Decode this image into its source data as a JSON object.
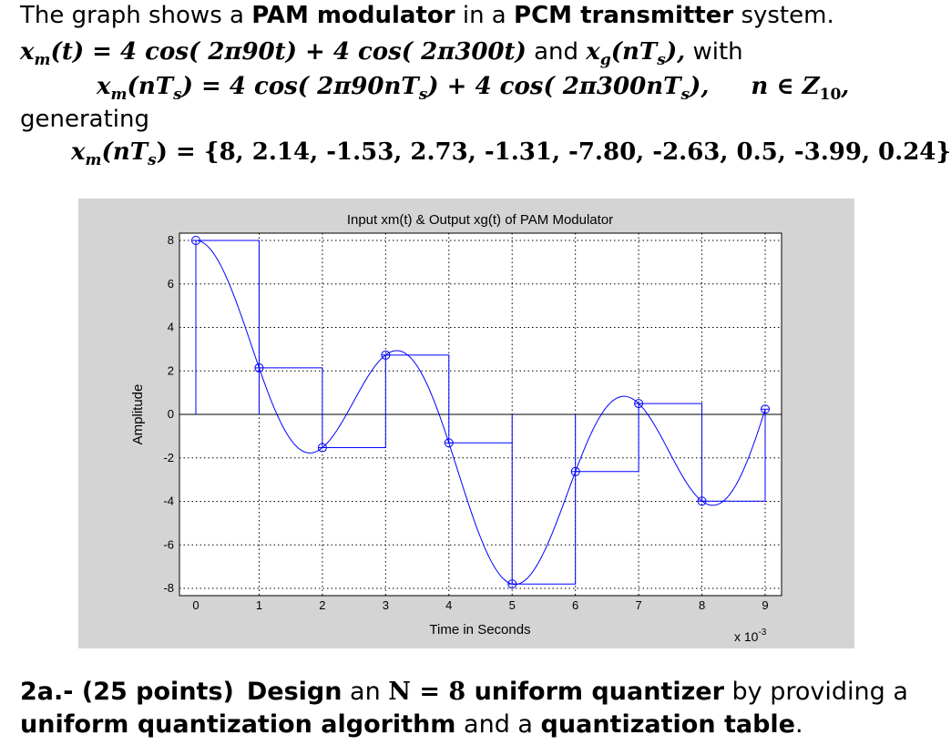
{
  "header": {
    "line1": {
      "pre": "The graph shows a ",
      "b1": "PAM modulator",
      "mid": " in a ",
      "b2": "PCM transmitter",
      "post": " system."
    },
    "line2": {
      "lhs": "x",
      "lhs_sub": "m",
      "lhs_arg": "(t) = 4 cos( 2π90t) + 4 cos( 2π300t)",
      "and": " and ",
      "xg": "x",
      "xg_sub": "g",
      "xg_arg": "(nT",
      "xg_sub2": "s",
      "xg_end": "),",
      "with": " with"
    },
    "line3": {
      "lhs": "x",
      "lhs_sub": "m",
      "lhs_arg1": "(nT",
      "lhs_sub2": "s",
      "lhs_arg2": ") = 4 cos( 2π90nT",
      "s1": "s",
      "mid": ") + 4 cos( 2π300nT",
      "s2": "s",
      "end": "),",
      "domain": "n ∈ Z",
      "domain_sub": "10",
      "comma": ","
    },
    "line4": "generating",
    "line5": {
      "lhs": "x",
      "lhs_sub": "m",
      "lhs_arg1": "(nT",
      "lhs_sub2": "s",
      "lhs_arg2": ") = {8, 2.14, -1.53, 2.73, -1.31, -7.80, -2.63, 0.5, -3.99, 0.24}"
    }
  },
  "question": {
    "label": "2a.- (25 points)",
    "design": "Design",
    "an": " an ",
    "n_eq": "N = 8",
    "uq": " uniform quantizer",
    "by": " by providing a",
    "uqa": "uniform quantization algorithm",
    "and": " and a ",
    "qt": "quantization table",
    "end": "."
  },
  "colors": {
    "panel": "#d4d4d4",
    "plot_bg": "#ffffff",
    "series": "#0000ff",
    "grid": "#000000"
  },
  "chart_data": {
    "type": "line",
    "title": "Input xm(t) & Output xg(t) of PAM Modulator",
    "xlabel": "Time in Seconds",
    "ylabel": "Amplitude",
    "x_multiplier": "x 10",
    "x_multiplier_exp": "-3",
    "xlim": [
      0,
      9
    ],
    "ylim": [
      -8,
      8
    ],
    "xticks": [
      0,
      1,
      2,
      3,
      4,
      5,
      6,
      7,
      8,
      9
    ],
    "yticks": [
      -8,
      -6,
      -4,
      -2,
      0,
      2,
      4,
      6,
      8
    ],
    "grid": true,
    "series": [
      {
        "name": "xm(t)",
        "kind": "continuous",
        "expression": "4cos(2π90t)+4cos(2π300t)",
        "t_unit": "ms"
      },
      {
        "name": "xg(nTs)",
        "kind": "sample-and-hold",
        "x": [
          0,
          1,
          2,
          3,
          4,
          5,
          6,
          7,
          8,
          9
        ],
        "values": [
          8,
          2.14,
          -1.53,
          2.73,
          -1.31,
          -7.8,
          -2.63,
          0.5,
          -3.99,
          0.24
        ]
      }
    ]
  }
}
